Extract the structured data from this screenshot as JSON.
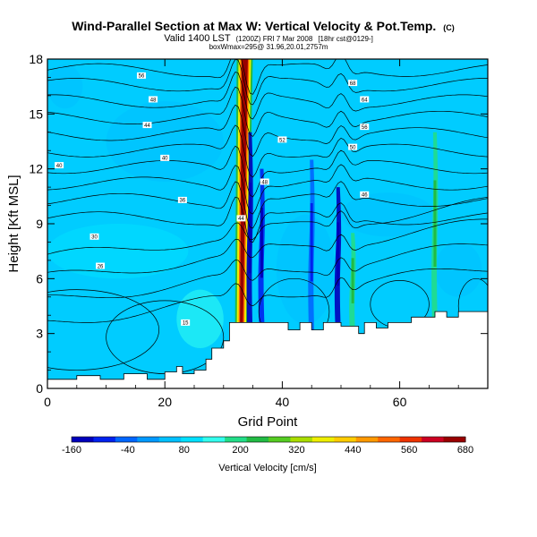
{
  "chart_data": {
    "type": "heatmap",
    "title": "Wind-Parallel Section at Max W: Vertical Velocity & Pot.Temp.",
    "title_suffix": "(C)",
    "subtitle_line1": "Valid 1400 LST",
    "subtitle_line1_small": "(1200Z) FRI 7 Mar 2008",
    "subtitle_line1_tail": "[18hr cst@0129-]",
    "subtitle_line2": "boxWmax=295@ 31.96,20.01,2757m",
    "xlabel": "Grid Point",
    "ylabel": "Height [Kft MSL]",
    "xlim": [
      0,
      75
    ],
    "ylim": [
      0,
      18
    ],
    "xticks": [
      "0",
      "20",
      "40",
      "60"
    ],
    "xtick_values": [
      0,
      20,
      40,
      60
    ],
    "yticks": [
      "0",
      "3",
      "6",
      "9",
      "12",
      "15",
      "18"
    ],
    "ytick_values": [
      0,
      3,
      6,
      9,
      12,
      15,
      18
    ],
    "colorbar": {
      "label": "Vertical Velocity [cm/s]",
      "tick_labels": [
        "-160",
        "-40",
        "80",
        "200",
        "320",
        "440",
        "560",
        "680"
      ],
      "colors": [
        "#0000bb",
        "#0022ee",
        "#0066ff",
        "#0099ff",
        "#00c0ff",
        "#00e0ff",
        "#33ffee",
        "#22dd88",
        "#22bb44",
        "#55cc22",
        "#aadd00",
        "#eeee00",
        "#ffcc00",
        "#ff9900",
        "#ff6600",
        "#ee3300",
        "#cc0022",
        "#990000"
      ]
    },
    "background_color": "#00ccff",
    "vertical_velocity_features": [
      {
        "x": 33,
        "y_bottom": 2.3,
        "y_top": 18,
        "value": 680
      },
      {
        "x": 34.5,
        "y_bottom": 3.0,
        "y_top": 14,
        "value": -140
      },
      {
        "x": 36.5,
        "y_bottom": 3.5,
        "y_top": 12,
        "value": -100
      },
      {
        "x": 45,
        "y_bottom": 3.0,
        "y_top": 12.5,
        "value": -60
      },
      {
        "x": 49.5,
        "y_bottom": 3.3,
        "y_top": 11,
        "value": -150
      },
      {
        "x": 52,
        "y_bottom": 3.0,
        "y_top": 8.5,
        "value": 180
      },
      {
        "x": 66,
        "y_bottom": 3.5,
        "y_top": 14,
        "value": 190
      }
    ],
    "theta_contour_labels": [
      {
        "text": "56",
        "x": 16,
        "y": 17.1
      },
      {
        "text": "48",
        "x": 18,
        "y": 15.8
      },
      {
        "text": "44",
        "x": 17,
        "y": 14.4
      },
      {
        "text": "40",
        "x": 20,
        "y": 12.6
      },
      {
        "text": "36",
        "x": 23,
        "y": 10.3
      },
      {
        "text": "30",
        "x": 8,
        "y": 8.3
      },
      {
        "text": "26",
        "x": 9,
        "y": 6.7
      },
      {
        "text": "15",
        "x": 23.5,
        "y": 3.6
      },
      {
        "text": "68",
        "x": 52,
        "y": 16.7
      },
      {
        "text": "64",
        "x": 54,
        "y": 15.8
      },
      {
        "text": "56",
        "x": 54,
        "y": 14.3
      },
      {
        "text": "52",
        "x": 40,
        "y": 13.6
      },
      {
        "text": "50",
        "x": 52,
        "y": 13.2
      },
      {
        "text": "48",
        "x": 37,
        "y": 11.3
      },
      {
        "text": "46",
        "x": 54,
        "y": 10.6
      },
      {
        "text": "40",
        "x": 2,
        "y": 12.2
      },
      {
        "text": "44",
        "x": 33,
        "y": 9.3
      }
    ],
    "terrain": [
      [
        0,
        0.5
      ],
      [
        5,
        0.5
      ],
      [
        5,
        0.7
      ],
      [
        9,
        0.7
      ],
      [
        9,
        0.5
      ],
      [
        13,
        0.5
      ],
      [
        13,
        0.8
      ],
      [
        17,
        0.8
      ],
      [
        17,
        0.5
      ],
      [
        20,
        0.5
      ],
      [
        20,
        0.9
      ],
      [
        22,
        0.9
      ],
      [
        22,
        1.2
      ],
      [
        23,
        1.2
      ],
      [
        23,
        0.8
      ],
      [
        25,
        0.8
      ],
      [
        25,
        1.0
      ],
      [
        27,
        1.0
      ],
      [
        27,
        1.6
      ],
      [
        28,
        1.6
      ],
      [
        28,
        2.2
      ],
      [
        30,
        2.2
      ],
      [
        30,
        2.6
      ],
      [
        31,
        2.6
      ],
      [
        31,
        3.6
      ],
      [
        41,
        3.6
      ],
      [
        41,
        3.2
      ],
      [
        43,
        3.2
      ],
      [
        43,
        3.6
      ],
      [
        45,
        3.6
      ],
      [
        45,
        3.2
      ],
      [
        47,
        3.2
      ],
      [
        47,
        3.6
      ],
      [
        50,
        3.6
      ],
      [
        50,
        3.4
      ],
      [
        53,
        3.4
      ],
      [
        53,
        3.0
      ],
      [
        54,
        3.0
      ],
      [
        54,
        3.6
      ],
      [
        56,
        3.6
      ],
      [
        56,
        3.3
      ],
      [
        58,
        3.3
      ],
      [
        58,
        3.6
      ],
      [
        62,
        3.6
      ],
      [
        62,
        3.9
      ],
      [
        66,
        3.9
      ],
      [
        66,
        4.2
      ],
      [
        68,
        4.2
      ],
      [
        68,
        3.9
      ],
      [
        70,
        3.9
      ],
      [
        70,
        4.2
      ],
      [
        75,
        4.2
      ]
    ]
  }
}
